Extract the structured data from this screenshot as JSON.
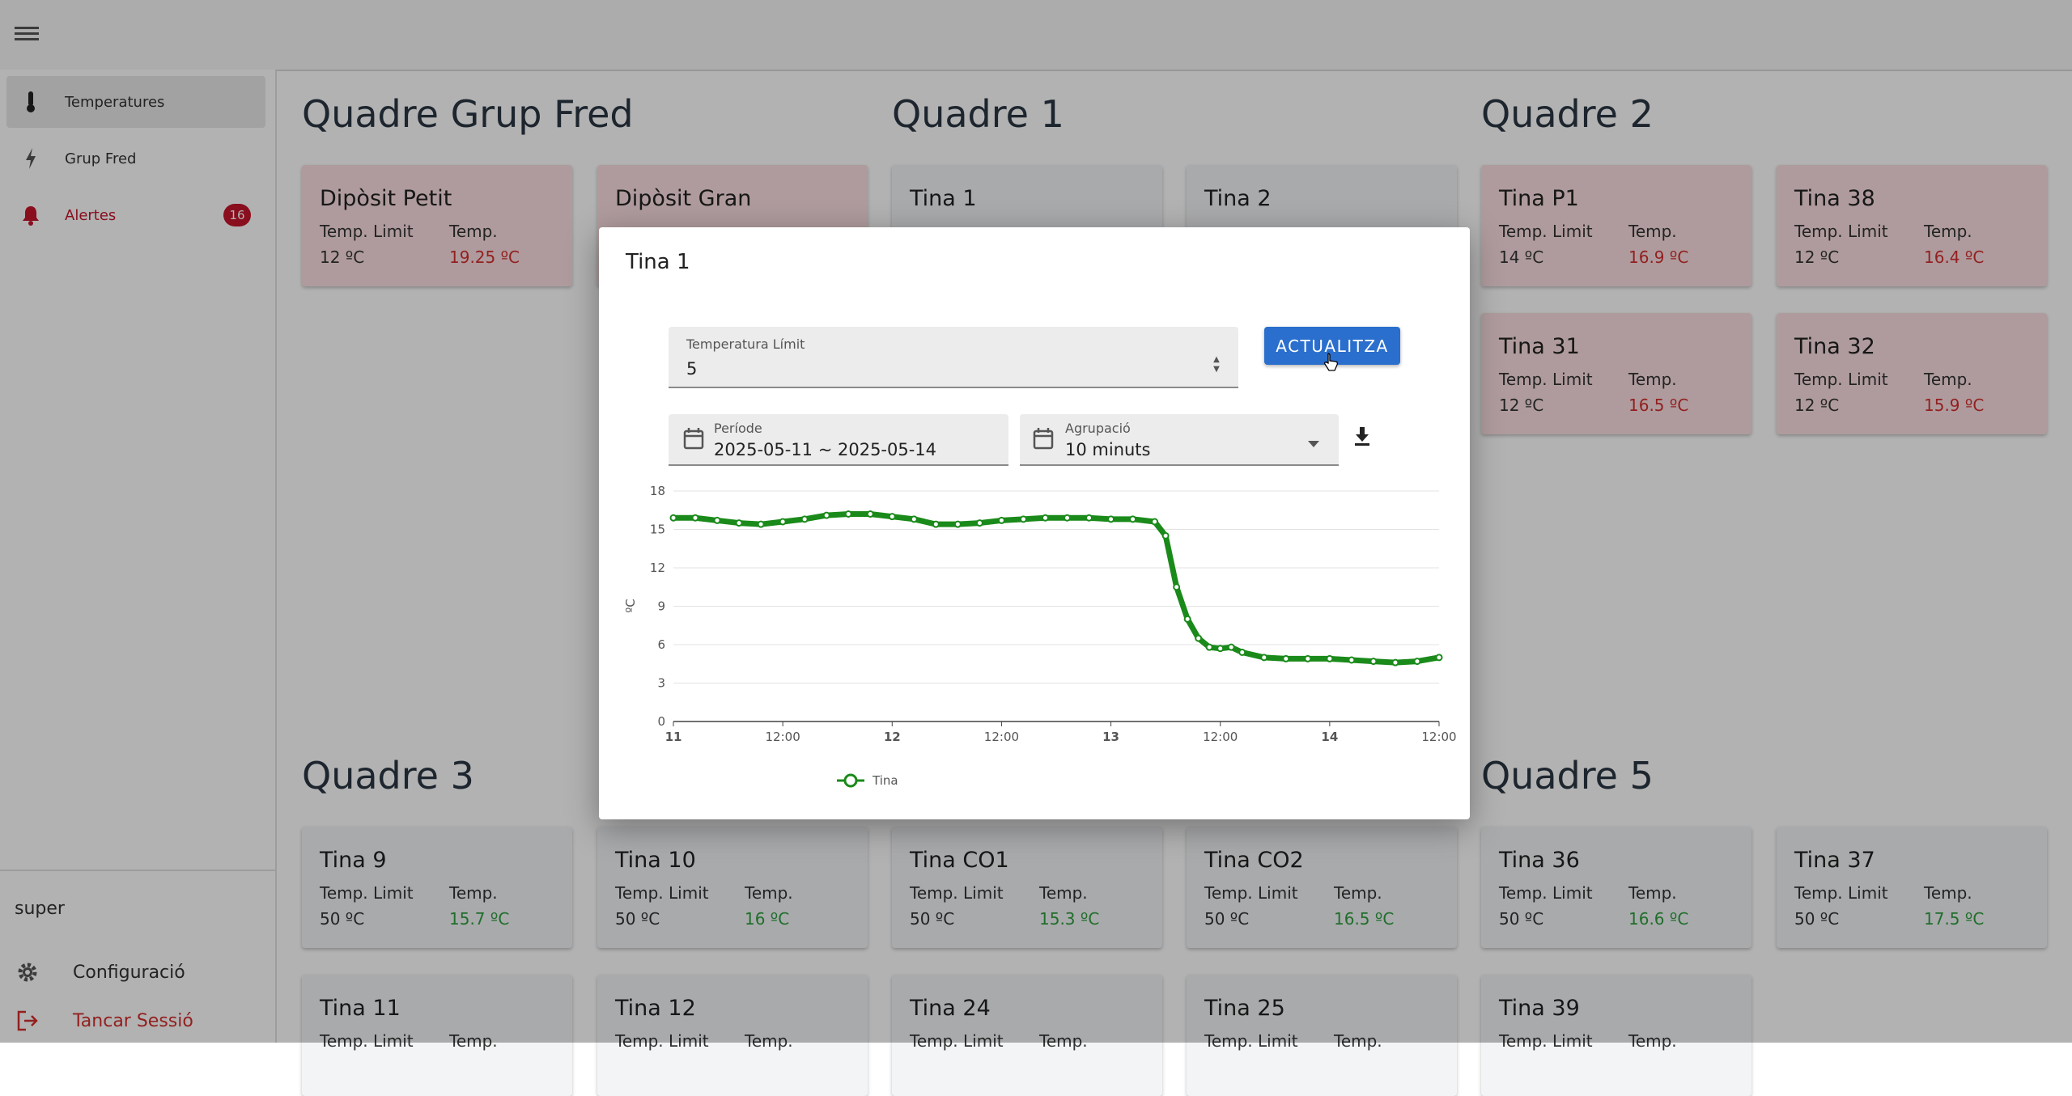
{
  "sidebar": {
    "items": [
      {
        "label": "Temperatures",
        "icon": "thermometer-icon"
      },
      {
        "label": "Grup Fred",
        "icon": "bolt-icon"
      },
      {
        "label": "Alertes",
        "icon": "bell-icon",
        "badge": "16"
      }
    ],
    "user": "super",
    "settings_label": "Configuració",
    "logout_label": "Tancar Sessió"
  },
  "sections": [
    {
      "title": "Quadre Grup Fred"
    },
    {
      "title": "Quadre 1"
    },
    {
      "title": "Quadre 2"
    },
    {
      "title": "Quadre 3"
    },
    {
      "title": "Quadre 5"
    }
  ],
  "cards": [
    {
      "name": "Dipòsit Petit",
      "limit_label": "Temp. Limit",
      "temp_label": "Temp.",
      "limit": "12 ºC",
      "temp": "19.25 ºC"
    },
    {
      "name": "Dipòsit Gran"
    },
    {
      "name": "Tina 1"
    },
    {
      "name": "Tina 2"
    },
    {
      "name": "Tina P1",
      "limit_label": "Temp. Limit",
      "temp_label": "Temp.",
      "limit": "14 ºC",
      "temp": "16.9 ºC"
    },
    {
      "name": "Tina 38",
      "limit_label": "Temp. Limit",
      "temp_label": "Temp.",
      "limit": "12 ºC",
      "temp": "16.4 ºC"
    },
    {
      "name": "Tina 31",
      "limit_label": "Temp. Limit",
      "temp_label": "Temp.",
      "limit": "12 ºC",
      "temp": "16.5 ºC"
    },
    {
      "name": "Tina 32",
      "limit_label": "Temp. Limit",
      "temp_label": "Temp.",
      "limit": "12 ºC",
      "temp": "15.9 ºC"
    },
    {
      "name": "Tina 9",
      "limit_label": "Temp. Limit",
      "temp_label": "Temp.",
      "limit": "50 ºC",
      "temp": "15.7 ºC"
    },
    {
      "name": "Tina 10",
      "limit_label": "Temp. Limit",
      "temp_label": "Temp.",
      "limit": "50 ºC",
      "temp": "16 ºC"
    },
    {
      "name": "Tina CO1",
      "limit_label": "Temp. Limit",
      "temp_label": "Temp.",
      "limit": "50 ºC",
      "temp": "15.3 ºC"
    },
    {
      "name": "Tina CO2",
      "limit_label": "Temp. Limit",
      "temp_label": "Temp.",
      "limit": "50 ºC",
      "temp": "16.5 ºC"
    },
    {
      "name": "Tina 36",
      "limit_label": "Temp. Limit",
      "temp_label": "Temp.",
      "limit": "50 ºC",
      "temp": "16.6 ºC"
    },
    {
      "name": "Tina 37",
      "limit_label": "Temp. Limit",
      "temp_label": "Temp.",
      "limit": "50 ºC",
      "temp": "17.5 ºC"
    },
    {
      "name": "Tina 11",
      "limit_label": "Temp. Limit",
      "temp_label": "Temp."
    },
    {
      "name": "Tina 12",
      "limit_label": "Temp. Limit",
      "temp_label": "Temp."
    },
    {
      "name": "Tina 24",
      "limit_label": "Temp. Limit",
      "temp_label": "Temp."
    },
    {
      "name": "Tina 25",
      "limit_label": "Temp. Limit",
      "temp_label": "Temp."
    },
    {
      "name": "Tina 39",
      "limit_label": "Temp. Limit",
      "temp_label": "Temp."
    }
  ],
  "dialog": {
    "title": "Tina 1",
    "limit_field": {
      "label": "Temperatura Límit",
      "value": "5"
    },
    "update_button": "ACTUALITZA",
    "period_field": {
      "label": "Període",
      "value": "2025-05-11 ~ 2025-05-14"
    },
    "group_field": {
      "label": "Agrupació",
      "value": "10 minuts"
    }
  },
  "chart_data": {
    "type": "line",
    "ylabel": "ºC",
    "ylim": [
      0,
      18
    ],
    "yticks": [
      "0",
      "3",
      "6",
      "9",
      "12",
      "15",
      "18"
    ],
    "xticks": [
      "11",
      "12:00",
      "12",
      "12:00",
      "13",
      "12:00",
      "14",
      "12:00"
    ],
    "xlim": [
      0,
      3.5
    ],
    "series": [
      {
        "name": "Tina",
        "color": "#1a8a1a",
        "x": [
          0,
          0.1,
          0.2,
          0.3,
          0.4,
          0.5,
          0.6,
          0.7,
          0.8,
          0.9,
          1.0,
          1.1,
          1.2,
          1.3,
          1.4,
          1.5,
          1.6,
          1.7,
          1.8,
          1.9,
          2.0,
          2.1,
          2.2,
          2.25,
          2.3,
          2.35,
          2.4,
          2.45,
          2.5,
          2.55,
          2.6,
          2.7,
          2.8,
          2.9,
          3.0,
          3.1,
          3.2,
          3.3,
          3.4,
          3.5
        ],
        "values": [
          15.9,
          15.9,
          15.7,
          15.5,
          15.4,
          15.6,
          15.8,
          16.1,
          16.2,
          16.2,
          16.0,
          15.8,
          15.4,
          15.4,
          15.5,
          15.7,
          15.8,
          15.9,
          15.9,
          15.9,
          15.8,
          15.8,
          15.6,
          14.5,
          10.5,
          8.0,
          6.5,
          5.8,
          5.7,
          5.8,
          5.4,
          5.0,
          4.9,
          4.9,
          4.9,
          4.8,
          4.7,
          4.6,
          4.7,
          5.0
        ]
      }
    ]
  }
}
